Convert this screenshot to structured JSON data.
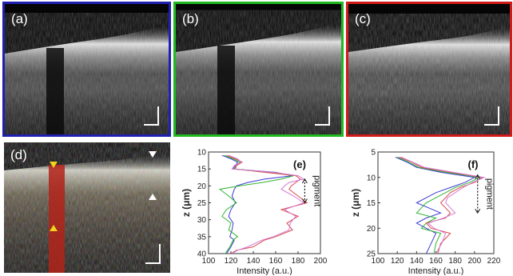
{
  "figure": {
    "panels": [
      {
        "id": "a",
        "label": "(a)",
        "border_color": "#1f1fb0"
      },
      {
        "id": "b",
        "label": "(b)",
        "border_color": "#1fb81f"
      },
      {
        "id": "c",
        "label": "(c)",
        "border_color": "#d11a1a"
      },
      {
        "id": "d",
        "label": "(d)"
      }
    ]
  },
  "chart_data": [
    {
      "id": "e",
      "type": "line",
      "label": "(e)",
      "xlabel": "Intensity (a.u.)",
      "ylabel": "z (μm)",
      "xlim": [
        100,
        200
      ],
      "ylim": [
        40,
        10
      ],
      "xticks": [
        100,
        120,
        140,
        160,
        180,
        200
      ],
      "yticks": [
        10,
        15,
        20,
        25,
        30,
        35,
        40
      ],
      "annotation": "pigment",
      "series": [
        {
          "color": "#3b3bd6",
          "x": [
            112,
            120,
            126,
            124,
            122,
            160,
            175,
            150,
            135,
            125,
            123,
            121,
            124,
            120,
            118,
            122,
            121,
            119,
            123,
            120,
            118,
            116
          ],
          "y": [
            11,
            12,
            13,
            14,
            15,
            16,
            17,
            18,
            19,
            20,
            21,
            23,
            25,
            27,
            29,
            31,
            33,
            35,
            36,
            38,
            39,
            40
          ]
        },
        {
          "color": "#31b531",
          "x": [
            114,
            122,
            128,
            125,
            124,
            155,
            176,
            165,
            148,
            128,
            110,
            118,
            125,
            116,
            112,
            120,
            118,
            126,
            122,
            119,
            117,
            115
          ],
          "y": [
            11,
            12,
            13,
            14,
            15,
            16,
            17,
            18,
            19,
            20,
            21,
            23,
            25,
            27,
            29,
            31,
            33,
            35,
            36,
            38,
            39,
            40
          ]
        },
        {
          "color": "#d94a4a",
          "x": [
            116,
            124,
            130,
            125,
            123,
            150,
            178,
            182,
            178,
            174,
            172,
            180,
            188,
            165,
            180,
            170,
            175,
            160,
            150,
            140,
            125,
            120
          ],
          "y": [
            11,
            12,
            13,
            14,
            15,
            16,
            17,
            18,
            19,
            20,
            21,
            23,
            25,
            27,
            29,
            31,
            33,
            35,
            36,
            38,
            39,
            40
          ]
        },
        {
          "color": "#d47ad4",
          "x": [
            118,
            126,
            129,
            123,
            121,
            158,
            180,
            185,
            172,
            168,
            165,
            176,
            185,
            168,
            178,
            173,
            172,
            158,
            148,
            135,
            126,
            121
          ],
          "y": [
            11,
            12,
            13,
            14,
            15,
            16,
            17,
            18,
            19,
            20,
            21,
            23,
            25,
            27,
            29,
            31,
            33,
            35,
            36,
            38,
            39,
            40
          ]
        }
      ]
    },
    {
      "id": "f",
      "type": "line",
      "label": "(f)",
      "xlabel": "Intensity (a.u.)",
      "ylabel": "z (μm)",
      "xlim": [
        100,
        220
      ],
      "ylim": [
        25,
        5
      ],
      "xticks": [
        100,
        120,
        140,
        160,
        180,
        200,
        220
      ],
      "yticks": [
        5,
        10,
        15,
        20,
        25
      ],
      "annotation": "pigment",
      "series": [
        {
          "color": "#3b3bd6",
          "x": [
            118,
            130,
            140,
            165,
            200,
            190,
            175,
            160,
            150,
            140,
            165,
            150,
            140,
            150,
            160,
            155,
            150
          ],
          "y": [
            6,
            7,
            8,
            9,
            10,
            11,
            12,
            13,
            14,
            15,
            17,
            18,
            19,
            20,
            21,
            23,
            25
          ]
        },
        {
          "color": "#31b531",
          "x": [
            120,
            132,
            142,
            170,
            205,
            195,
            180,
            170,
            160,
            150,
            140,
            160,
            150,
            145,
            165,
            160,
            158
          ],
          "y": [
            6,
            7,
            8,
            9,
            10,
            11,
            12,
            13,
            14,
            15,
            17,
            18,
            19,
            20,
            21,
            23,
            25
          ]
        },
        {
          "color": "#d94a4a",
          "x": [
            122,
            135,
            145,
            175,
            208,
            200,
            185,
            175,
            170,
            165,
            175,
            170,
            150,
            155,
            175,
            165,
            162
          ],
          "y": [
            6,
            7,
            8,
            9,
            10,
            11,
            12,
            13,
            14,
            15,
            17,
            18,
            19,
            20,
            21,
            23,
            25
          ]
        },
        {
          "color": "#d47ad4",
          "x": [
            124,
            136,
            148,
            178,
            210,
            198,
            188,
            180,
            172,
            170,
            180,
            168,
            152,
            158,
            170,
            166,
            160
          ],
          "y": [
            6,
            7,
            8,
            9,
            10,
            11,
            12,
            13,
            14,
            15,
            17,
            18,
            19,
            20,
            21,
            23,
            25
          ]
        }
      ]
    }
  ]
}
